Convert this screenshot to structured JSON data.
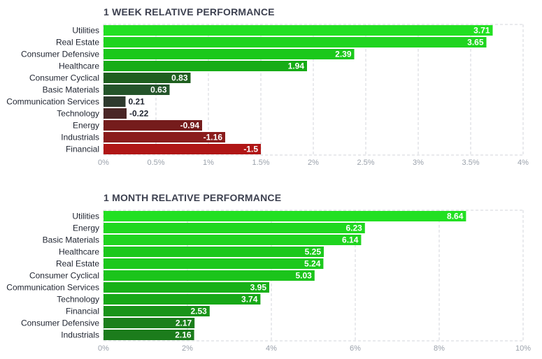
{
  "chart_data": [
    {
      "type": "bar",
      "orientation": "horizontal",
      "title": "1 WEEK RELATIVE PERFORMANCE",
      "categories": [
        "Utilities",
        "Real Estate",
        "Consumer Defensive",
        "Healthcare",
        "Consumer Cyclical",
        "Basic Materials",
        "Communication Services",
        "Technology",
        "Energy",
        "Industrials",
        "Financial"
      ],
      "values": [
        3.71,
        3.65,
        2.39,
        1.94,
        0.83,
        0.63,
        0.21,
        -0.22,
        -0.94,
        -1.16,
        -1.5
      ],
      "value_labels": [
        "3.71",
        "3.65",
        "2.39",
        "1.94",
        "0.83",
        "0.63",
        "0.21",
        "-0.22",
        "-0.94",
        "-1.16",
        "-1.5"
      ],
      "xlim": [
        0,
        4
      ],
      "xticks": [
        "0%",
        "0.5%",
        "1%",
        "1.5%",
        "2%",
        "2.5%",
        "3%",
        "3.5%",
        "4%"
      ],
      "grid": true,
      "bar_colors": [
        "#22e022",
        "#1fd41f",
        "#1bc81b",
        "#17ac17",
        "#1f5f1f",
        "#24542a",
        "#2e3a2e",
        "#4a2626",
        "#751c1c",
        "#8a1c1c",
        "#b01616"
      ]
    },
    {
      "type": "bar",
      "orientation": "horizontal",
      "title": "1 MONTH RELATIVE PERFORMANCE",
      "categories": [
        "Utilities",
        "Energy",
        "Basic Materials",
        "Healthcare",
        "Real Estate",
        "Consumer Cyclical",
        "Communication Services",
        "Technology",
        "Financial",
        "Consumer Defensive",
        "Industrials"
      ],
      "values": [
        8.64,
        6.23,
        6.14,
        5.25,
        5.24,
        5.03,
        3.95,
        3.74,
        2.53,
        2.17,
        2.16
      ],
      "value_labels": [
        "8.64",
        "6.23",
        "6.14",
        "5.25",
        "5.24",
        "5.03",
        "3.95",
        "3.74",
        "2.53",
        "2.17",
        "2.16"
      ],
      "xlim": [
        0,
        10
      ],
      "xticks": [
        "0%",
        "2%",
        "4%",
        "6%",
        "8%",
        "10%"
      ],
      "grid": true,
      "bar_colors": [
        "#22e022",
        "#1fd81f",
        "#1fd41f",
        "#1cc81c",
        "#1cc81c",
        "#1bc41b",
        "#18b018",
        "#17a817",
        "#1a941a",
        "#1c7f1c",
        "#1c7c1c"
      ]
    }
  ]
}
